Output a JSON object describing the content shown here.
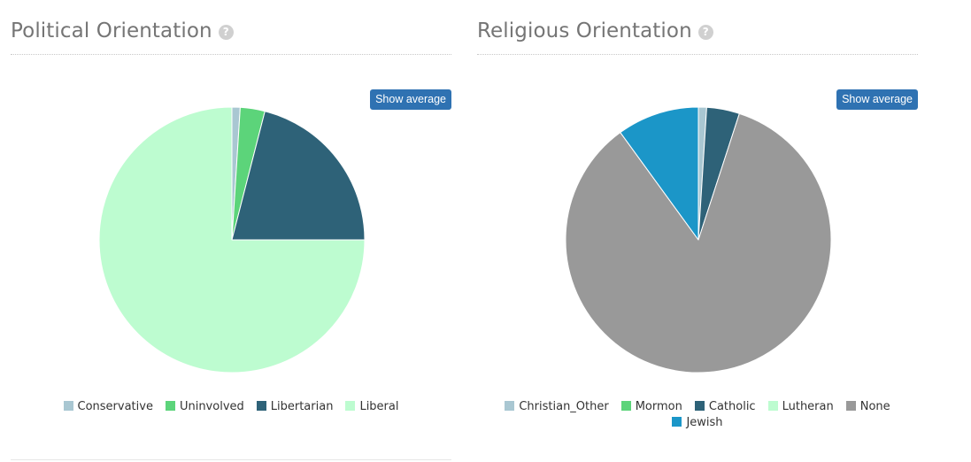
{
  "panels": [
    {
      "title": "Political Orientation",
      "help_icon": "?",
      "button_label": "Show average",
      "show_bottom_divider": true
    },
    {
      "title": "Religious Orientation",
      "help_icon": "?",
      "button_label": "Show average",
      "show_bottom_divider": false
    }
  ],
  "chart_data": [
    {
      "type": "pie",
      "title": "Political Orientation",
      "start_angle_deg": 0,
      "direction": "clockwise",
      "slices": [
        {
          "label": "Conservative",
          "value": 1,
          "color": "#a9c7d2"
        },
        {
          "label": "Uninvolved",
          "value": 3,
          "color": "#5cd47a"
        },
        {
          "label": "Libertarian",
          "value": 21,
          "color": "#2e6278"
        },
        {
          "label": "Liberal",
          "value": 75,
          "color": "#bdfcd0"
        }
      ],
      "legend_position": "bottom"
    },
    {
      "type": "pie",
      "title": "Religious Orientation",
      "start_angle_deg": 0,
      "direction": "clockwise",
      "slices": [
        {
          "label": "Christian_Other",
          "value": 1,
          "color": "#a9c7d2"
        },
        {
          "label": "Mormon",
          "value": 0,
          "color": "#5cd47a"
        },
        {
          "label": "Catholic",
          "value": 4,
          "color": "#2e6278"
        },
        {
          "label": "Lutheran",
          "value": 0,
          "color": "#bdfcd0"
        },
        {
          "label": "None",
          "value": 85,
          "color": "#999999"
        },
        {
          "label": "Jewish",
          "value": 10,
          "color": "#1b96c8"
        }
      ],
      "legend_position": "bottom"
    }
  ]
}
